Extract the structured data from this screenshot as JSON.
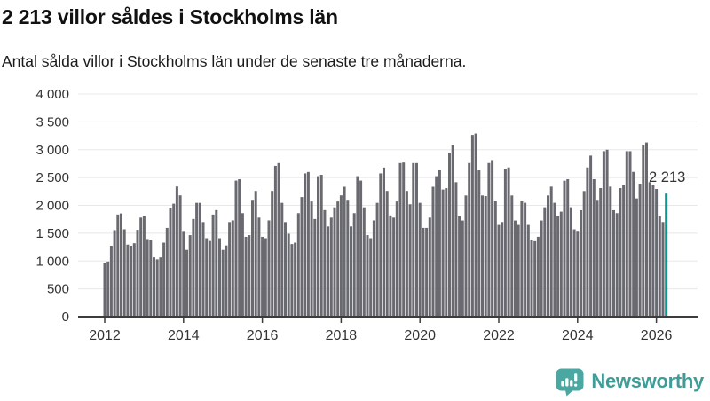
{
  "header": {
    "title": "2 213 villor såldes i Stockholms län",
    "subtitle": "Antal sålda villor i Stockholms län under de senaste tre månaderna."
  },
  "chart_data": {
    "type": "bar",
    "title": "2 213 villor såldes i Stockholms län",
    "subtitle": "Antal sålda villor i Stockholms län under de senaste tre månaderna.",
    "frequency": "monthly",
    "x_start": "2012-01",
    "x_end": "2026",
    "ylim": [
      0,
      4000
    ],
    "grid": true,
    "legend": "none",
    "y_ticks": [
      {
        "value": 0,
        "label": "0"
      },
      {
        "value": 500,
        "label": "500"
      },
      {
        "value": 1000,
        "label": "1 000"
      },
      {
        "value": 1500,
        "label": "1 500"
      },
      {
        "value": 2000,
        "label": "2 000"
      },
      {
        "value": 2500,
        "label": "2 500"
      },
      {
        "value": 3000,
        "label": "3 000"
      },
      {
        "value": 3500,
        "label": "3 500"
      },
      {
        "value": 4000,
        "label": "4 000"
      }
    ],
    "x_ticks": [
      {
        "year": 2012,
        "label": "2012"
      },
      {
        "year": 2014,
        "label": "2014"
      },
      {
        "year": 2016,
        "label": "2016"
      },
      {
        "year": 2018,
        "label": "2018"
      },
      {
        "year": 2020,
        "label": "2020"
      },
      {
        "year": 2022,
        "label": "2022"
      },
      {
        "year": 2024,
        "label": "2024"
      },
      {
        "year": 2026,
        "label": "2026"
      }
    ],
    "bar_color": "#696970",
    "highlight_color": "#009a93",
    "highlight_last": true,
    "last_value": 2213,
    "last_value_label": "2 213",
    "values": [
      960,
      990,
      1275,
      1555,
      1835,
      1855,
      1570,
      1295,
      1275,
      1320,
      1560,
      1780,
      1805,
      1395,
      1385,
      1065,
      1030,
      1065,
      1330,
      1595,
      1955,
      2030,
      2340,
      2180,
      1540,
      1200,
      1465,
      1755,
      2045,
      2045,
      1700,
      1410,
      1360,
      1835,
      1915,
      1410,
      1200,
      1280,
      1700,
      1730,
      2445,
      2470,
      1860,
      1435,
      1465,
      2100,
      2260,
      1780,
      1435,
      1410,
      1730,
      2260,
      2710,
      2760,
      2045,
      1700,
      1490,
      1305,
      1330,
      1860,
      2150,
      2575,
      2600,
      2070,
      1755,
      2525,
      2550,
      1915,
      1620,
      1780,
      1965,
      2070,
      2180,
      2335,
      2100,
      1620,
      1860,
      2525,
      2445,
      1965,
      1465,
      1410,
      1730,
      2045,
      2575,
      2680,
      2260,
      1820,
      1780,
      2070,
      2760,
      2770,
      2260,
      2020,
      2760,
      2760,
      2045,
      1595,
      1595,
      1780,
      2335,
      2525,
      2630,
      2285,
      2310,
      2947,
      3080,
      2417,
      1807,
      1728,
      2178,
      2761,
      3265,
      3290,
      2629,
      2178,
      2168,
      2761,
      2814,
      2072,
      1648,
      1701,
      2655,
      2682,
      2178,
      1728,
      1648,
      2072,
      2046,
      1648,
      1383,
      1357,
      1436,
      1728,
      1966,
      2178,
      2337,
      2046,
      1807,
      1887,
      2443,
      2470,
      1966,
      1569,
      1542,
      1913,
      2258,
      2682,
      2894,
      2470,
      2099,
      2311,
      2973,
      3000,
      2337,
      1913,
      1860,
      2311,
      2364,
      2973,
      2973,
      2602,
      2125,
      2390,
      3090,
      3130,
      2417,
      2364,
      2295,
      1807,
      1701,
      2213
    ]
  },
  "footer": {
    "brand": "Newsworthy",
    "logo_icon": "newsworthy-speech-bubble-chart-icon",
    "logo_color": "#4ba7a1",
    "text_color": "#3e9d97"
  }
}
